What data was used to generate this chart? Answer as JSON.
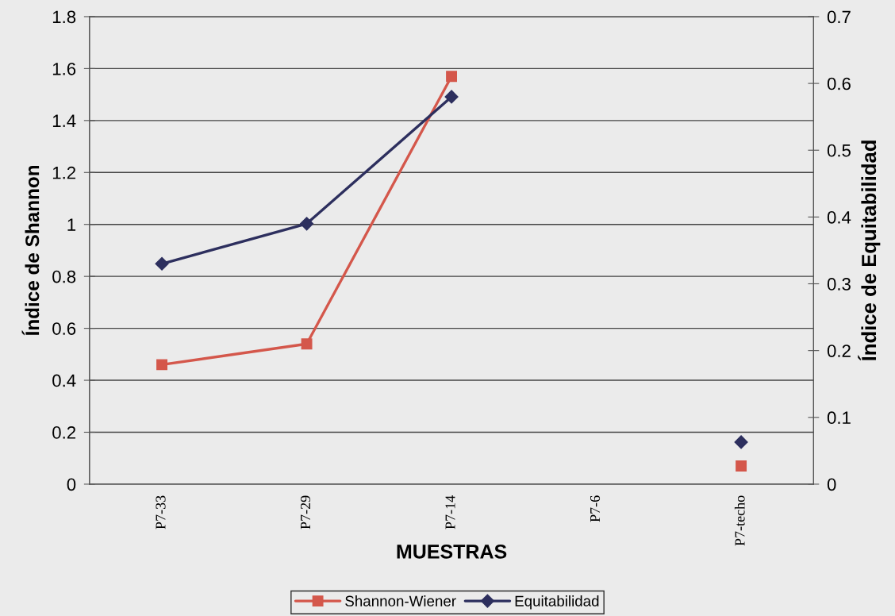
{
  "chart_data": {
    "type": "line",
    "xlabel": "MUESTRAS",
    "ylabel": "Índice de Shannon",
    "y2label": "Índice de Equitabilidad",
    "categories": [
      "P7-33",
      "P7-29",
      "P7-14",
      "P7-6",
      "P7-techo"
    ],
    "series": [
      {
        "name": "Shannon-Wiener",
        "color": "#d4574b",
        "values": [
          0.46,
          0.54,
          1.57,
          null,
          0.07
        ],
        "marker": "square"
      },
      {
        "name": "Equitabilidad",
        "color": "#2d2f5e",
        "values": [
          0.33,
          0.39,
          0.58,
          null,
          0.063
        ],
        "marker": "diamond",
        "axis": "y2"
      }
    ],
    "ylim": [
      0,
      1.8
    ],
    "yticks": [
      0,
      0.2,
      0.4,
      0.6,
      0.8,
      1,
      1.2,
      1.4,
      1.6,
      1.8
    ],
    "y2lim": [
      0,
      0.7
    ],
    "y2ticks": [
      0,
      0.1,
      0.2,
      0.3,
      0.4,
      0.5,
      0.6,
      0.7
    ],
    "grid": "y",
    "legend": "bottom",
    "line_style": "solid"
  }
}
